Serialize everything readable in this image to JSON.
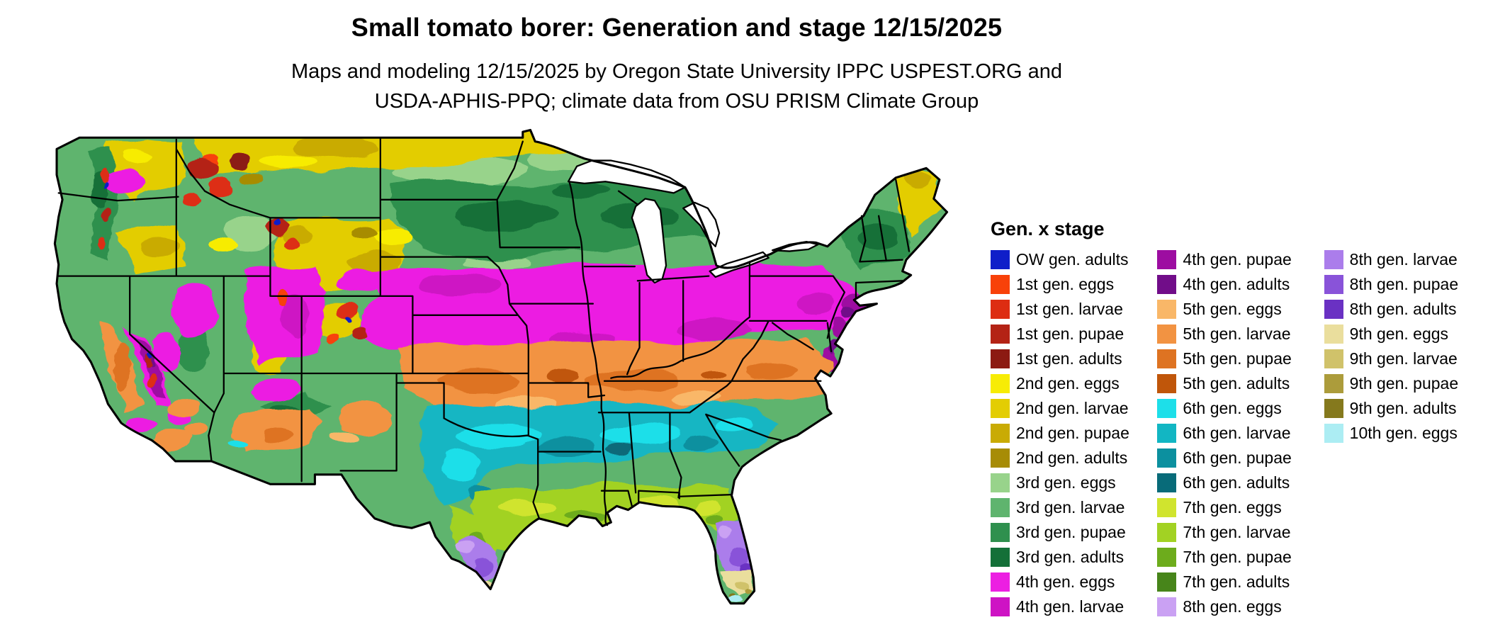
{
  "header": {
    "title": "Small tomato borer: Generation and stage 12/15/2025",
    "subtitle_line1": "Maps and modeling 12/15/2025 by Oregon State University IPPC USPEST.ORG and",
    "subtitle_line2": "USDA-APHIS-PPQ; climate data from OSU PRISM Climate Group"
  },
  "legend": {
    "title": "Gen. x stage",
    "columns": [
      {
        "items": [
          {
            "key": "ow_adults",
            "label": "OW gen. adults"
          },
          {
            "key": "g1_eggs",
            "label": "1st gen. eggs"
          },
          {
            "key": "g1_larvae",
            "label": "1st gen. larvae"
          },
          {
            "key": "g1_pupae",
            "label": "1st gen. pupae"
          },
          {
            "key": "g1_adults",
            "label": "1st gen. adults"
          },
          {
            "key": "g2_eggs",
            "label": "2nd gen. eggs"
          },
          {
            "key": "g2_larvae",
            "label": "2nd gen. larvae"
          },
          {
            "key": "g2_pupae",
            "label": "2nd gen. pupae"
          },
          {
            "key": "g2_adults",
            "label": "2nd gen. adults"
          },
          {
            "key": "g3_eggs",
            "label": "3rd gen. eggs"
          },
          {
            "key": "g3_larvae",
            "label": "3rd gen. larvae"
          },
          {
            "key": "g3_pupae",
            "label": "3rd gen. pupae"
          },
          {
            "key": "g3_adults",
            "label": "3rd gen. adults"
          },
          {
            "key": "g4_eggs",
            "label": "4th gen. eggs"
          },
          {
            "key": "g4_larvae",
            "label": "4th gen. larvae"
          }
        ]
      },
      {
        "items": [
          {
            "key": "g4_pupae",
            "label": "4th gen. pupae"
          },
          {
            "key": "g4_adults",
            "label": "4th gen. adults"
          },
          {
            "key": "g5_eggs",
            "label": "5th gen. eggs"
          },
          {
            "key": "g5_larvae",
            "label": "5th gen. larvae"
          },
          {
            "key": "g5_pupae",
            "label": "5th gen. pupae"
          },
          {
            "key": "g5_adults",
            "label": "5th gen. adults"
          },
          {
            "key": "g6_eggs",
            "label": "6th gen. eggs"
          },
          {
            "key": "g6_larvae",
            "label": "6th gen. larvae"
          },
          {
            "key": "g6_pupae",
            "label": "6th gen. pupae"
          },
          {
            "key": "g6_adults",
            "label": "6th gen. adults"
          },
          {
            "key": "g7_eggs",
            "label": "7th gen. eggs"
          },
          {
            "key": "g7_larvae",
            "label": "7th gen. larvae"
          },
          {
            "key": "g7_pupae",
            "label": "7th gen. pupae"
          },
          {
            "key": "g7_adults",
            "label": "7th gen. adults"
          },
          {
            "key": "g8_eggs",
            "label": "8th gen. eggs"
          }
        ]
      },
      {
        "items": [
          {
            "key": "g8_larvae",
            "label": "8th gen. larvae"
          },
          {
            "key": "g8_pupae",
            "label": "8th gen. pupae"
          },
          {
            "key": "g8_adults",
            "label": "8th gen. adults"
          },
          {
            "key": "g9_eggs",
            "label": "9th gen. eggs"
          },
          {
            "key": "g9_larvae",
            "label": "9th gen. larvae"
          },
          {
            "key": "g9_pupae",
            "label": "9th gen. pupae"
          },
          {
            "key": "g9_adults",
            "label": "9th gen. adults"
          },
          {
            "key": "g10_eggs",
            "label": "10th gen. eggs"
          }
        ]
      }
    ]
  },
  "palette": {
    "ow_adults": "#0f1ec9",
    "g1_eggs": "#f84109",
    "g1_larvae": "#dd2d12",
    "g1_pupae": "#b42315",
    "g1_adults": "#8c1a12",
    "g2_eggs": "#f7ec05",
    "g2_larvae": "#e3cd03",
    "g2_pupae": "#c9ab04",
    "g2_adults": "#a78c06",
    "g3_eggs": "#98d38b",
    "g3_larvae": "#5fb46e",
    "g3_pupae": "#2f904e",
    "g3_adults": "#147038",
    "g4_eggs": "#ec1fe2",
    "g4_larvae": "#ce13c4",
    "g4_pupae": "#9d0da1",
    "g4_adults": "#710d89",
    "g5_eggs": "#f9b768",
    "g5_larvae": "#f29342",
    "g5_pupae": "#de7322",
    "g5_adults": "#c0560a",
    "g6_eggs": "#1ddfe9",
    "g6_larvae": "#12b6c3",
    "g6_pupae": "#0c909f",
    "g6_adults": "#086b79",
    "g7_eggs": "#d0e42e",
    "g7_larvae": "#a2d223",
    "g7_pupae": "#6dac1c",
    "g7_adults": "#47851a",
    "g8_eggs": "#caa1f3",
    "g8_larvae": "#ab7deb",
    "g8_pupae": "#8953d9",
    "g8_adults": "#6a31c3",
    "g9_eggs": "#eade9d",
    "g9_larvae": "#d0c26a",
    "g9_pupae": "#ac9c3b",
    "g9_adults": "#85791d",
    "g10_eggs": "#acedf3"
  },
  "map": {
    "border_color": "#000000",
    "water_color": "#ffffff"
  }
}
